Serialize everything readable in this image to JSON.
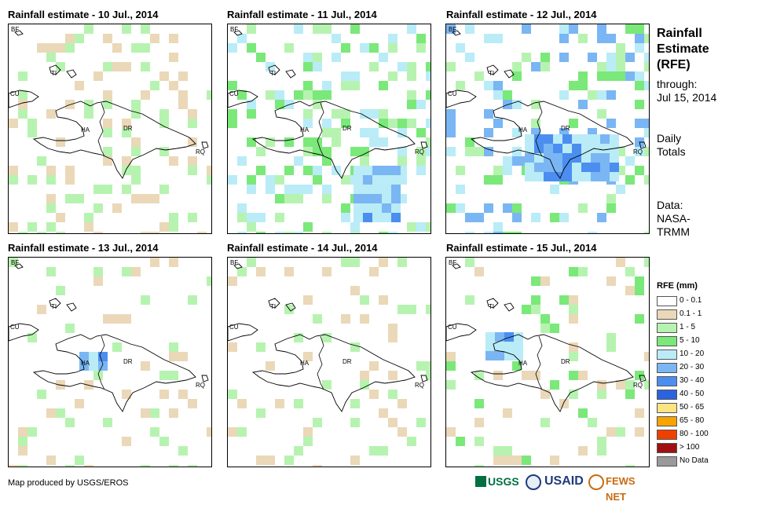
{
  "panels": [
    {
      "title": "Rainfall estimate - 10 Jul., 2014"
    },
    {
      "title": "Rainfall estimate - 11 Jul., 2014"
    },
    {
      "title": "Rainfall estimate - 12 Jul., 2014"
    },
    {
      "title": "Rainfall estimate - 13 Jul., 2014"
    },
    {
      "title": "Rainfall estimate - 14 Jul., 2014"
    },
    {
      "title": "Rainfall estimate - 15 Jul., 2014"
    }
  ],
  "map_labels": {
    "bf": "BF",
    "ti": "TI",
    "cu": "CU",
    "ha": "HA",
    "dr": "DR",
    "rq": "RQ"
  },
  "side": {
    "title_line1": "Rainfall",
    "title_line2": "Estimate",
    "title_line3": "(RFE)",
    "through": "through:",
    "date": "Jul 15, 2014",
    "totals_line1": "Daily",
    "totals_line2": "Totals",
    "data_line1": "Data:",
    "data_line2": "NASA-",
    "data_line3": "TRMM"
  },
  "legend": {
    "title": "RFE (mm)",
    "items": [
      {
        "label": "0 - 0.1",
        "color": "#ffffff"
      },
      {
        "label": "0.1 - 1",
        "color": "#ead8b8"
      },
      {
        "label": "1 - 5",
        "color": "#b7f3b0"
      },
      {
        "label": "5 - 10",
        "color": "#7be87a"
      },
      {
        "label": "10 - 20",
        "color": "#b9ecf7"
      },
      {
        "label": "20 - 30",
        "color": "#7ab6f3"
      },
      {
        "label": "30 - 40",
        "color": "#4b8ef0"
      },
      {
        "label": "40 - 50",
        "color": "#2b62e0"
      },
      {
        "label": "50 - 65",
        "color": "#fde483"
      },
      {
        "label": "65 - 80",
        "color": "#f7a400"
      },
      {
        "label": "80 - 100",
        "color": "#f04000"
      },
      {
        "label": "> 100",
        "color": "#a01010"
      },
      {
        "label": "No Data",
        "color": "#9a9a9a"
      }
    ]
  },
  "footer": "Map produced by USGS/EROS",
  "logos": {
    "usgs": "USGS",
    "usaid": "USAID",
    "fews": "FEWS NET"
  }
}
